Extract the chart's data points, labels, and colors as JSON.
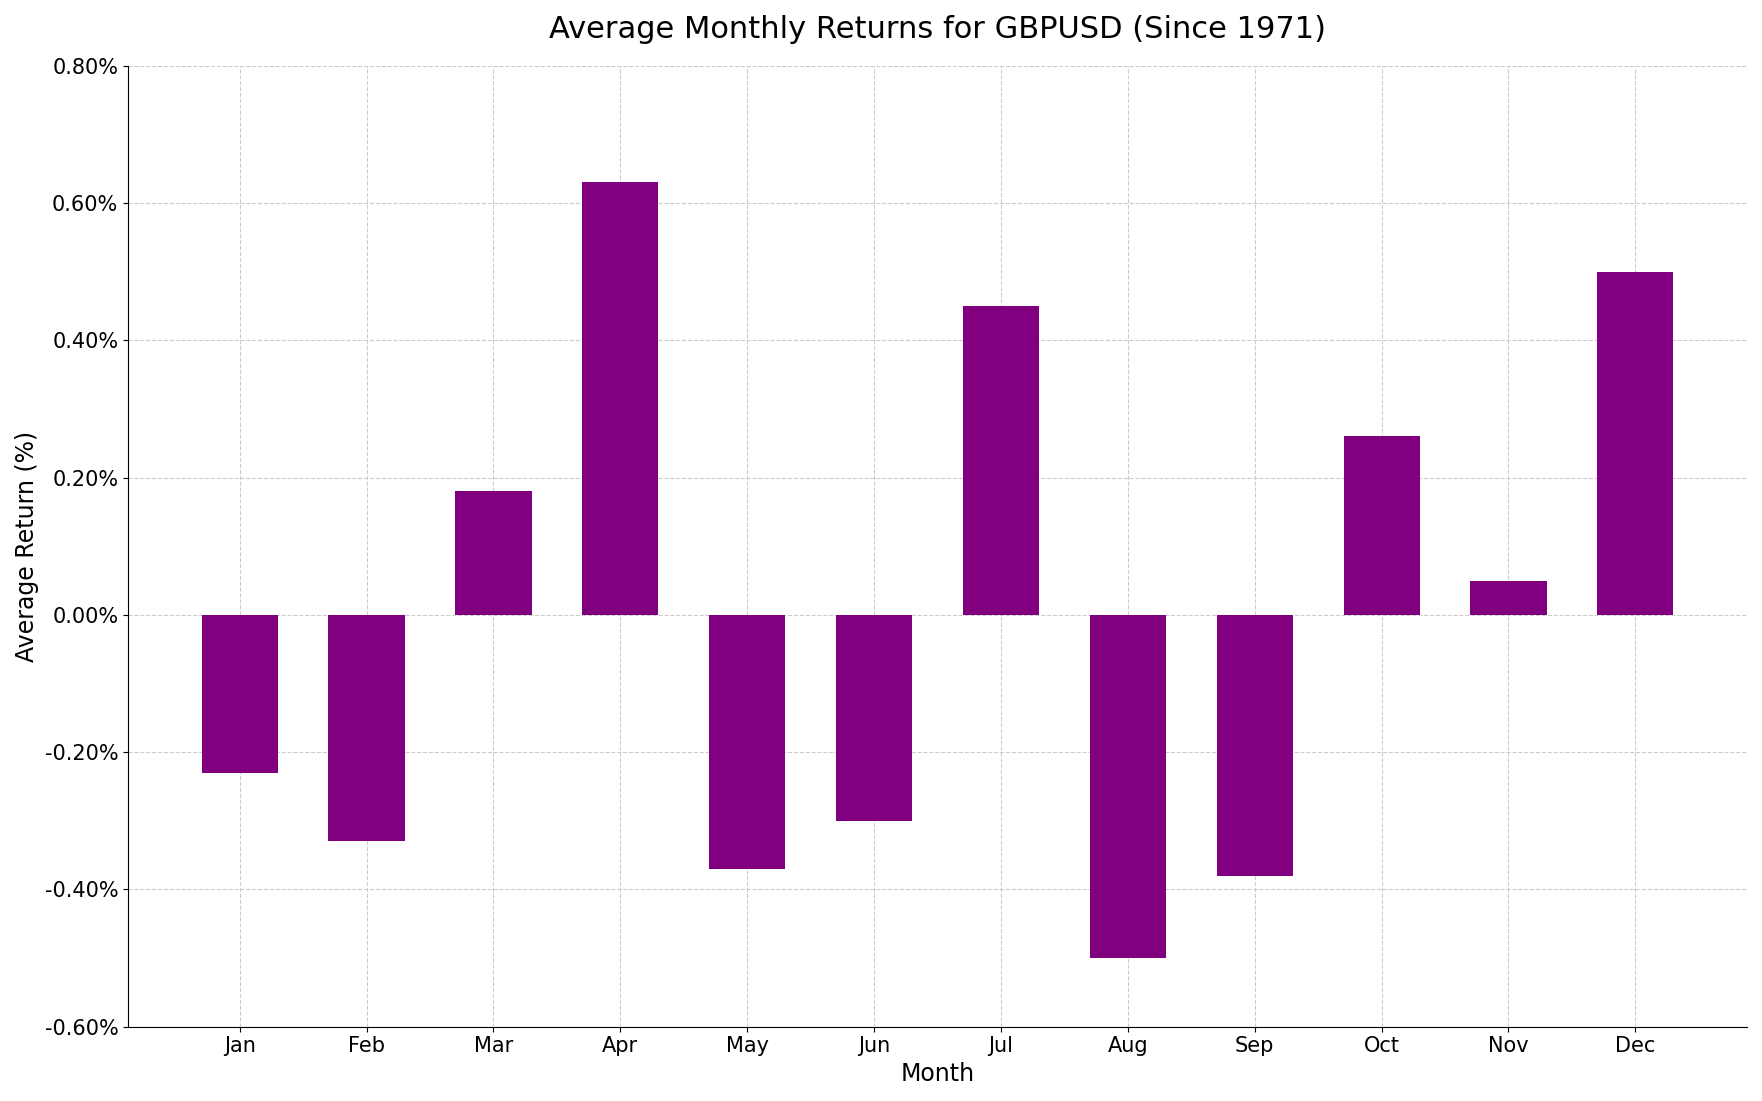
{
  "title": "Average Monthly Returns for GBPUSD (Since 1971)",
  "xlabel": "Month",
  "ylabel": "Average Return (%)",
  "categories": [
    "Jan",
    "Feb",
    "Mar",
    "Apr",
    "May",
    "Jun",
    "Jul",
    "Aug",
    "Sep",
    "Oct",
    "Nov",
    "Dec"
  ],
  "values": [
    -0.0023,
    -0.0033,
    0.0018,
    0.0063,
    -0.0037,
    -0.003,
    0.0045,
    -0.005,
    -0.0038,
    0.0026,
    0.0005,
    0.005
  ],
  "bar_color": "#800080",
  "background_color": "#ffffff",
  "grid_color": "#cccccc",
  "ylim": [
    -0.006,
    0.008
  ],
  "yticks": [
    -0.006,
    -0.004,
    -0.002,
    0.0,
    0.002,
    0.004,
    0.006,
    0.008
  ],
  "title_fontsize": 22,
  "label_fontsize": 17,
  "tick_fontsize": 15
}
